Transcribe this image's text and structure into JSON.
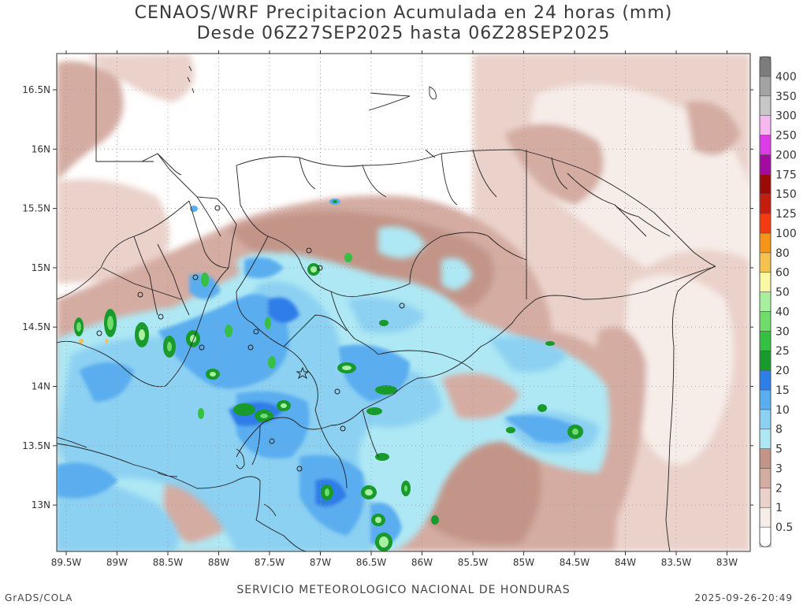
{
  "title_line1": "CENAOS/WRF Precipitacion Acumulada en 24 horas (mm)",
  "title_line2": "Desde 06Z27SEP2025 hasta 06Z28SEP2025",
  "footer_left": "GrADS/COLA",
  "footer_center": "SERVICIO METEOROLOGICO NACIONAL DE HONDURAS",
  "footer_right": "2025-09-26-20:49",
  "axes": {
    "lon_labels": [
      "89.5W",
      "89W",
      "88.5W",
      "88W",
      "87.5W",
      "87W",
      "86.5W",
      "86W",
      "85.5W",
      "85W",
      "84.5W",
      "84W",
      "83.5W",
      "83W"
    ],
    "lat_labels": [
      "16.5N",
      "16N",
      "15.5N",
      "15N",
      "14.5N",
      "14N",
      "13.5N",
      "13N"
    ]
  },
  "colorbar": {
    "levels": [
      "0.5",
      "1",
      "2",
      "3",
      "5",
      "8",
      "10",
      "15",
      "20",
      "25",
      "30",
      "40",
      "50",
      "60",
      "80",
      "100",
      "125",
      "150",
      "175",
      "200",
      "250",
      "300",
      "350",
      "400"
    ],
    "colors": [
      "#ffffff",
      "#f6ece8",
      "#ead2ca",
      "#d4aca2",
      "#c39588",
      "#aee8f4",
      "#8cd0f2",
      "#5aaef0",
      "#2f7de8",
      "#189a2c",
      "#35c043",
      "#6fdc6b",
      "#a8f0a0",
      "#faf7a6",
      "#f6c24e",
      "#f49518",
      "#f33a13",
      "#c51c10",
      "#9c0a08",
      "#a40aa0",
      "#dd3ce6",
      "#f7b8f2",
      "#c7c7c7",
      "#a3a3a3",
      "#7c7c7c"
    ]
  }
}
